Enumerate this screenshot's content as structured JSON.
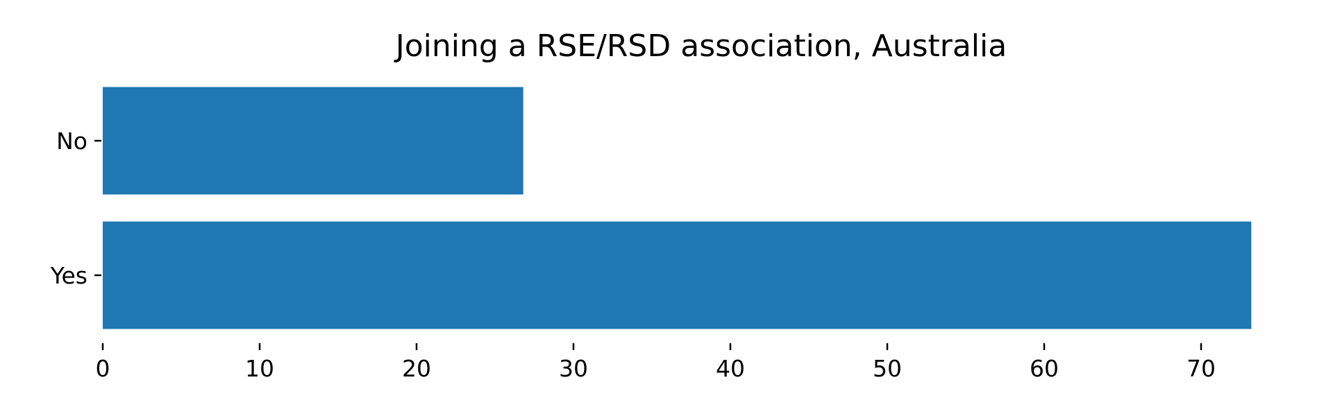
{
  "chart_data": {
    "type": "bar",
    "orientation": "horizontal",
    "title": "Joining a RSE/RSD association, Australia",
    "xlabel": "",
    "ylabel": "",
    "categories": [
      "No",
      "Yes"
    ],
    "values": [
      26.8,
      73.2
    ],
    "xlim": [
      0,
      75
    ],
    "xticks": [
      0,
      10,
      20,
      30,
      40,
      50,
      60,
      70
    ],
    "bar_color": "#1f77b4",
    "grid": false,
    "legend": "none"
  }
}
